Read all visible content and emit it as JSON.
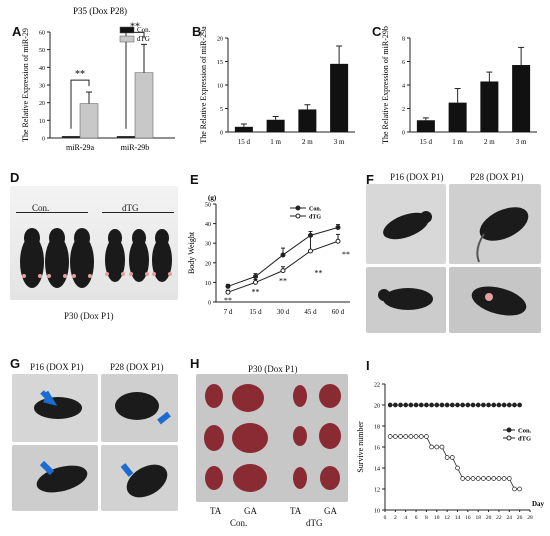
{
  "chart_data": [
    {
      "panel": "A",
      "type": "bar",
      "title": "P35 (Dox P28)",
      "ylabel": "The Relative Expression of miR-29",
      "ylim": [
        0,
        60
      ],
      "yticks": [
        0,
        10,
        20,
        30,
        40,
        50,
        60
      ],
      "categories": [
        "miR-29a",
        "miR-29b"
      ],
      "series": [
        {
          "name": "Con.",
          "values": [
            1,
            1
          ],
          "errors": [
            0,
            0
          ],
          "color": "#111111"
        },
        {
          "name": "dTG",
          "values": [
            19.5,
            37
          ],
          "errors": [
            6.5,
            16
          ],
          "color": "#c8c8c8"
        }
      ],
      "annotations": [
        "**",
        "**"
      ],
      "legend_position": "top-right"
    },
    {
      "panel": "B",
      "type": "bar",
      "ylabel": "The Relative Expression of miR-29a",
      "ylim": [
        0,
        20
      ],
      "yticks": [
        0,
        5,
        10,
        15,
        20
      ],
      "categories": [
        "15 d",
        "1 m",
        "2 m",
        "3 m"
      ],
      "values": [
        1.1,
        2.6,
        4.8,
        14.5
      ],
      "errors": [
        0.6,
        0.7,
        1.0,
        3.8
      ]
    },
    {
      "panel": "C",
      "type": "bar",
      "ylabel": "The Relative Expression of miR-29b",
      "ylim": [
        0,
        8
      ],
      "yticks": [
        0,
        2,
        4,
        6,
        8
      ],
      "categories": [
        "15 d",
        "1 m",
        "2 m",
        "3 m"
      ],
      "values": [
        1.0,
        2.5,
        4.3,
        5.7
      ],
      "errors": [
        0.2,
        1.2,
        0.8,
        1.5
      ]
    },
    {
      "panel": "E",
      "type": "line",
      "ylabel": "Body Weight",
      "unit": "(g)",
      "ylim": [
        0,
        50
      ],
      "yticks": [
        0,
        10,
        20,
        30,
        40,
        50
      ],
      "categories": [
        "7 d",
        "15 d",
        "30 d",
        "45 d",
        "60 d"
      ],
      "series": [
        {
          "name": "Con.",
          "values": [
            8,
            13,
            24,
            34,
            38
          ],
          "errors": [
            1,
            1.5,
            3.5,
            2,
            1.5
          ],
          "marker": "filled"
        },
        {
          "name": "dTG",
          "values": [
            5,
            10,
            16,
            26,
            31
          ],
          "errors": [
            1,
            1.5,
            2,
            8,
            3.5
          ],
          "marker": "open"
        }
      ],
      "annotations": [
        "**",
        "**",
        "**",
        "**",
        "**"
      ],
      "legend_position": "top-right"
    },
    {
      "panel": "I",
      "type": "line",
      "ylabel": "Survive number",
      "xlabel": "Day",
      "ylim": [
        10,
        22
      ],
      "yticks": [
        10,
        12,
        14,
        16,
        18,
        20,
        22
      ],
      "xlim": [
        0,
        28
      ],
      "xticks": [
        0,
        2,
        4,
        6,
        8,
        10,
        12,
        14,
        16,
        18,
        20,
        22,
        24,
        26,
        28
      ],
      "series": [
        {
          "name": "Con.",
          "marker": "filled",
          "x": [
            1,
            2,
            3,
            4,
            5,
            6,
            7,
            8,
            9,
            10,
            11,
            12,
            13,
            14,
            15,
            16,
            17,
            18,
            19,
            20,
            21,
            22,
            23,
            24,
            25,
            26
          ],
          "y": [
            20,
            20,
            20,
            20,
            20,
            20,
            20,
            20,
            20,
            20,
            20,
            20,
            20,
            20,
            20,
            20,
            20,
            20,
            20,
            20,
            20,
            20,
            20,
            20,
            20,
            20
          ]
        },
        {
          "name": "dTG",
          "marker": "open",
          "x": [
            1,
            2,
            3,
            4,
            5,
            6,
            7,
            8,
            9,
            10,
            11,
            12,
            13,
            14,
            15,
            16,
            17,
            18,
            19,
            20,
            21,
            22,
            23,
            24,
            25,
            26
          ],
          "y": [
            17,
            17,
            17,
            17,
            17,
            17,
            17,
            17,
            16,
            16,
            16,
            15,
            15,
            14,
            13,
            13,
            13,
            13,
            13,
            13,
            13,
            13,
            13,
            13,
            12,
            12
          ]
        }
      ],
      "legend_position": "right"
    }
  ],
  "panels": {
    "A": "A",
    "B": "B",
    "C": "C",
    "D": "D",
    "E": "E",
    "F": "F",
    "G": "G",
    "H": "H",
    "I": "I"
  },
  "figure_d": {
    "group_con": "Con.",
    "group_dtg": "dTG",
    "caption": "P30 (Dox P1)"
  },
  "figure_f": {
    "label_left": "P16 (DOX P1)",
    "label_right": "P28 (DOX P1)"
  },
  "figure_g": {
    "label_left": "P16 (DOX P1)",
    "label_right": "P28 (DOX P1)"
  },
  "figure_h": {
    "title": "P30 (Dox P1)",
    "ta1": "TA",
    "ga1": "GA",
    "ta2": "TA",
    "ga2": "GA",
    "group_con": "Con.",
    "group_dtg": "dTG"
  }
}
